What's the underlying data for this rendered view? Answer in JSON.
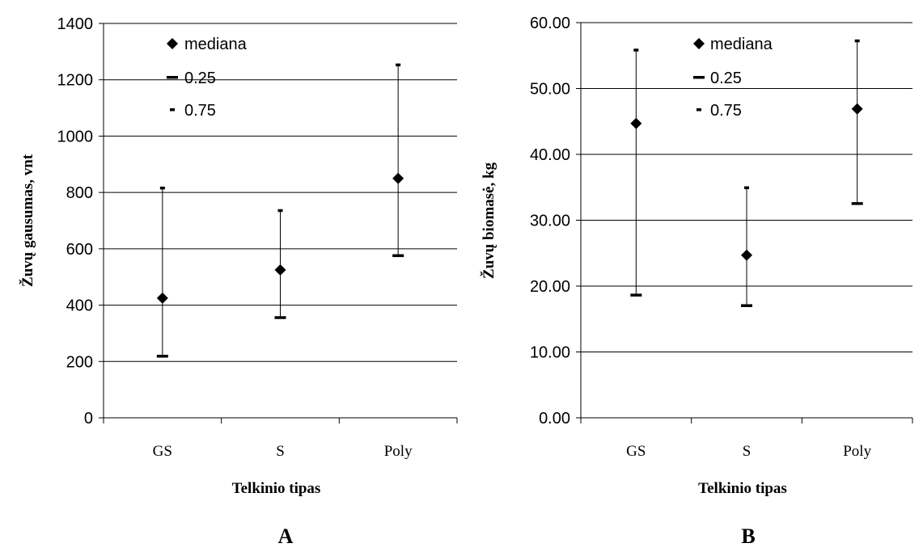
{
  "chart_data": [
    {
      "panel": "A",
      "type": "scatter",
      "categories": [
        "GS",
        "S",
        "Poly"
      ],
      "xlabel": "Telkinio tipas",
      "ylabel": "Žuvų gausumas, vnt",
      "ylim": [
        0,
        1400
      ],
      "yticks": [
        "0",
        "200",
        "400",
        "600",
        "800",
        "1000",
        "1200",
        "1400"
      ],
      "grid": true,
      "legend": "top-left",
      "series": [
        {
          "name": "mediana",
          "marker": "diamond",
          "values": [
            425,
            525,
            850
          ]
        },
        {
          "name": "0.25",
          "marker": "dash",
          "values": [
            218,
            355,
            575
          ]
        },
        {
          "name": "0.75",
          "marker": "dot",
          "values": [
            815,
            735,
            1252
          ]
        }
      ]
    },
    {
      "panel": "B",
      "type": "scatter",
      "categories": [
        "GS",
        "S",
        "Poly"
      ],
      "xlabel": "Telkinio tipas",
      "ylabel": "Žuvų biomasė, kg",
      "ylim": [
        0,
        60
      ],
      "yticks": [
        "0.00",
        "10.00",
        "20.00",
        "30.00",
        "40.00",
        "50.00",
        "60.00"
      ],
      "grid": true,
      "legend": "top-right",
      "series": [
        {
          "name": "mediana",
          "marker": "diamond",
          "values": [
            44.7,
            24.7,
            46.9
          ]
        },
        {
          "name": "0.25",
          "marker": "dash",
          "values": [
            18.6,
            17.0,
            32.5
          ]
        },
        {
          "name": "0.75",
          "marker": "dot",
          "values": [
            55.8,
            34.9,
            57.2
          ]
        }
      ]
    }
  ]
}
